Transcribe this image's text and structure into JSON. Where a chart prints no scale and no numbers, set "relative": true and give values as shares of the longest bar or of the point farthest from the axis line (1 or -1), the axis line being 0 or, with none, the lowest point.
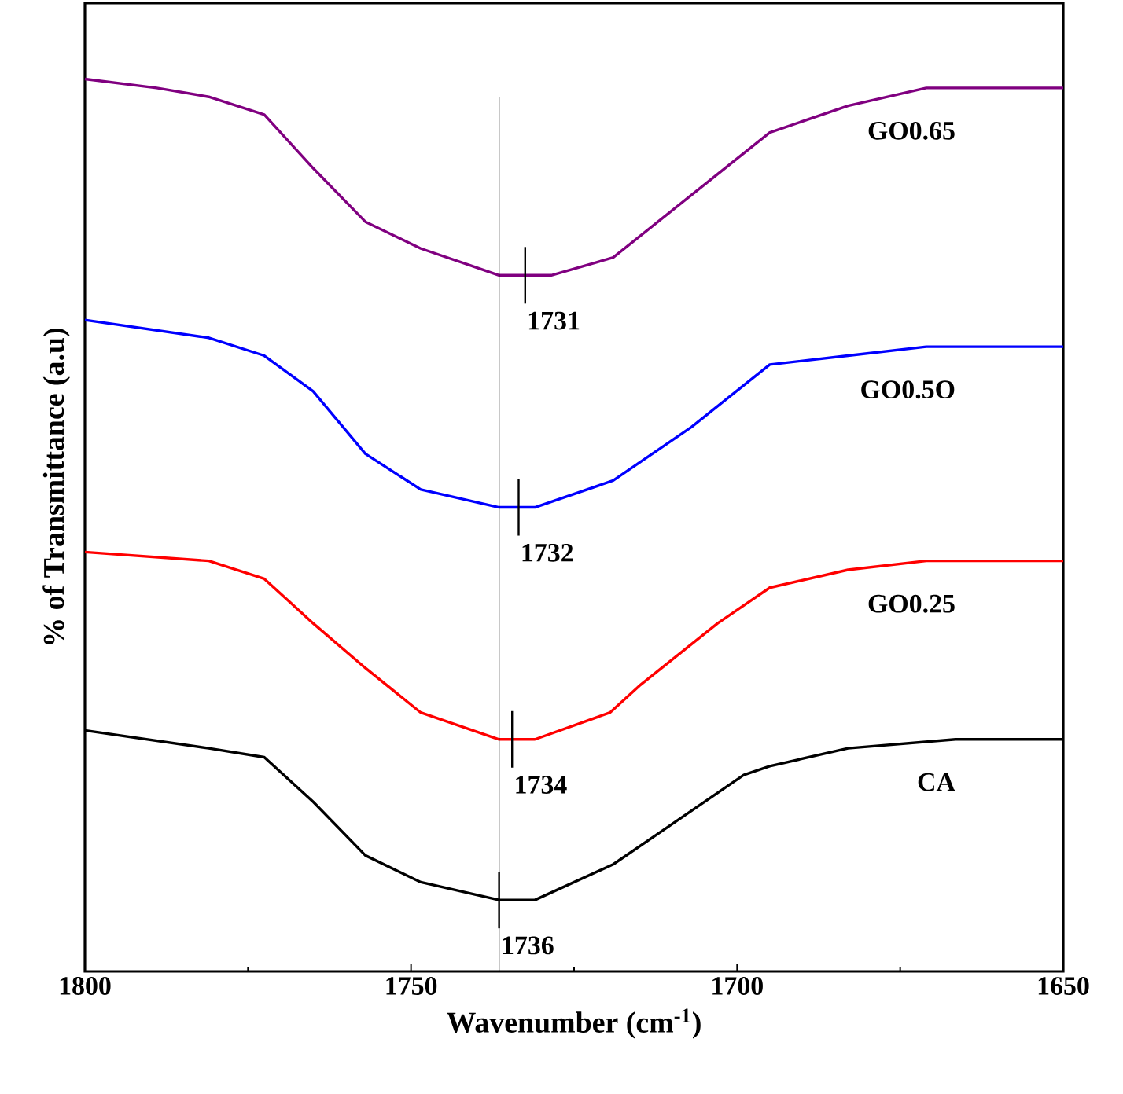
{
  "chart_data": {
    "type": "line",
    "relative": true,
    "xlabel": "Wavenumber (cm$^{-1}$)",
    "ylabel": "% of Transmittance (a.u)",
    "xlim": [
      1800,
      1650
    ],
    "xticks": [
      1800,
      1750,
      1700,
      1650
    ],
    "series": [
      {
        "name": "GO0.65",
        "color": "#800080",
        "x": [
          1800,
          1789,
          1781,
          1772.5,
          1765,
          1757,
          1748.5,
          1740.5,
          1736.5,
          1732.5,
          1728.5,
          1719,
          1707,
          1695,
          1683,
          1671,
          1650
        ],
        "values": [
          1.0,
          0.99,
          0.98,
          0.96,
          0.9,
          0.84,
          0.81,
          0.79,
          0.78,
          0.78,
          0.78,
          0.8,
          0.87,
          0.94,
          0.97,
          0.99,
          0.99
        ]
      },
      {
        "name": "GO0.5O",
        "color": "#0000ff",
        "x": [
          1800,
          1781,
          1772.5,
          1765,
          1757,
          1748.5,
          1736.5,
          1734.5,
          1731,
          1719,
          1707,
          1695,
          1683,
          1671,
          1650
        ],
        "values": [
          0.73,
          0.71,
          0.69,
          0.65,
          0.58,
          0.54,
          0.52,
          0.52,
          0.52,
          0.55,
          0.61,
          0.68,
          0.69,
          0.7,
          0.7
        ]
      },
      {
        "name": "GO0.25",
        "color": "#ff0000",
        "x": [
          1800,
          1781,
          1772.5,
          1765,
          1757,
          1748.5,
          1736.5,
          1734.5,
          1731,
          1719.5,
          1715,
          1703,
          1695,
          1683,
          1671,
          1650
        ],
        "values": [
          0.47,
          0.46,
          0.44,
          0.39,
          0.34,
          0.29,
          0.26,
          0.26,
          0.26,
          0.29,
          0.32,
          0.39,
          0.43,
          0.45,
          0.46,
          0.46
        ]
      },
      {
        "name": "CA",
        "color": "#000000",
        "x": [
          1800,
          1781,
          1772.5,
          1765,
          1757,
          1748.5,
          1736.5,
          1731,
          1719,
          1711,
          1699,
          1695,
          1683,
          1666.5,
          1650
        ],
        "values": [
          0.27,
          0.25,
          0.24,
          0.19,
          0.13,
          0.1,
          0.08,
          0.08,
          0.12,
          0.16,
          0.22,
          0.23,
          0.25,
          0.26,
          0.26
        ]
      }
    ],
    "ref_lines": [
      {
        "axis": "x",
        "value": 1736.5,
        "color": "#000000"
      }
    ],
    "annotations": [
      {
        "text": "1731",
        "x": 1732.5,
        "y": 0.78
      },
      {
        "text": "1732",
        "x": 1733.5,
        "y": 0.52
      },
      {
        "text": "1734",
        "x": 1734.5,
        "y": 0.26
      },
      {
        "text": "1736",
        "x": 1736.5,
        "y": 0.08
      }
    ]
  }
}
